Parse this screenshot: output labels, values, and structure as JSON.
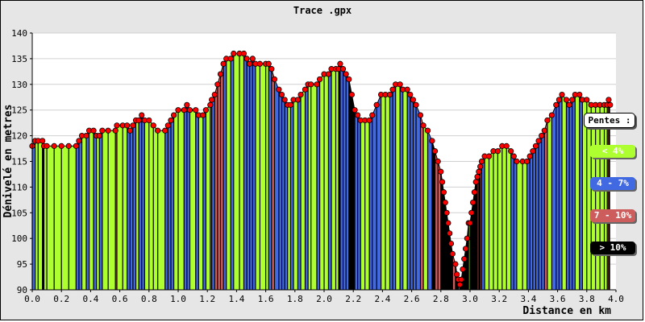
{
  "chart_data": {
    "type": "area",
    "title": "Trace .gpx",
    "xlabel": "Distance en km",
    "ylabel": "Dénivelé en metres",
    "xlim": [
      0,
      4.0
    ],
    "ylim": [
      90,
      140
    ],
    "x_ticks": [
      "0.0",
      "0.2",
      "0.4",
      "0.6",
      "0.8",
      "1.0",
      "1.2",
      "1.4",
      "1.6",
      "1.8",
      "2.0",
      "2.2",
      "2.4",
      "2.6",
      "2.8",
      "3.0",
      "3.2",
      "3.4",
      "3.6",
      "3.8",
      "4.0"
    ],
    "y_ticks": [
      "90",
      "95",
      "100",
      "105",
      "110",
      "115",
      "120",
      "125",
      "130",
      "135",
      "140"
    ],
    "grid": "horizontal",
    "legend": {
      "title": "Pentes :",
      "placement": "right",
      "items": [
        {
          "label": "< 4%",
          "color": "#adff2f",
          "text_color": "#ffffff"
        },
        {
          "label": "4 - 7%",
          "color": "#4169e1",
          "text_color": "#ffffff"
        },
        {
          "label": "7 - 10%",
          "color": "#cd5c5c",
          "text_color": "#ffffff"
        },
        {
          "label": "> 10%",
          "color": "#000000",
          "text_color": "#ffffff"
        }
      ]
    },
    "points": [
      [
        0.0,
        118
      ],
      [
        0.02,
        119
      ],
      [
        0.04,
        119
      ],
      [
        0.07,
        119
      ],
      [
        0.08,
        118
      ],
      [
        0.1,
        118
      ],
      [
        0.15,
        118
      ],
      [
        0.2,
        118
      ],
      [
        0.25,
        118
      ],
      [
        0.3,
        118
      ],
      [
        0.32,
        119
      ],
      [
        0.34,
        120
      ],
      [
        0.37,
        120
      ],
      [
        0.39,
        121
      ],
      [
        0.42,
        121
      ],
      [
        0.44,
        120
      ],
      [
        0.46,
        120
      ],
      [
        0.48,
        121
      ],
      [
        0.52,
        121
      ],
      [
        0.57,
        121
      ],
      [
        0.58,
        122
      ],
      [
        0.62,
        122
      ],
      [
        0.65,
        122
      ],
      [
        0.67,
        121
      ],
      [
        0.69,
        122
      ],
      [
        0.71,
        123
      ],
      [
        0.73,
        123
      ],
      [
        0.75,
        124
      ],
      [
        0.77,
        123
      ],
      [
        0.8,
        123
      ],
      [
        0.83,
        122
      ],
      [
        0.86,
        121
      ],
      [
        0.91,
        121
      ],
      [
        0.93,
        122
      ],
      [
        0.95,
        123
      ],
      [
        0.97,
        124
      ],
      [
        1.0,
        125
      ],
      [
        1.04,
        125
      ],
      [
        1.06,
        126
      ],
      [
        1.08,
        125
      ],
      [
        1.12,
        125
      ],
      [
        1.14,
        124
      ],
      [
        1.17,
        124
      ],
      [
        1.19,
        125
      ],
      [
        1.22,
        126
      ],
      [
        1.23,
        127
      ],
      [
        1.25,
        128
      ],
      [
        1.27,
        130
      ],
      [
        1.29,
        132
      ],
      [
        1.31,
        134
      ],
      [
        1.33,
        135
      ],
      [
        1.36,
        135
      ],
      [
        1.38,
        136
      ],
      [
        1.42,
        136
      ],
      [
        1.45,
        136
      ],
      [
        1.47,
        135
      ],
      [
        1.49,
        134
      ],
      [
        1.51,
        135
      ],
      [
        1.53,
        134
      ],
      [
        1.56,
        134
      ],
      [
        1.6,
        134
      ],
      [
        1.62,
        134
      ],
      [
        1.64,
        133
      ],
      [
        1.66,
        131
      ],
      [
        1.69,
        129
      ],
      [
        1.71,
        128
      ],
      [
        1.73,
        127
      ],
      [
        1.75,
        126
      ],
      [
        1.77,
        126
      ],
      [
        1.79,
        127
      ],
      [
        1.82,
        127
      ],
      [
        1.84,
        128
      ],
      [
        1.87,
        129
      ],
      [
        1.89,
        130
      ],
      [
        1.91,
        130
      ],
      [
        1.95,
        130
      ],
      [
        1.97,
        131
      ],
      [
        2.0,
        132
      ],
      [
        2.03,
        132
      ],
      [
        2.05,
        133
      ],
      [
        2.08,
        133
      ],
      [
        2.1,
        133
      ],
      [
        2.11,
        134
      ],
      [
        2.13,
        133
      ],
      [
        2.15,
        132
      ],
      [
        2.17,
        131
      ],
      [
        2.19,
        128
      ],
      [
        2.21,
        125
      ],
      [
        2.23,
        124
      ],
      [
        2.25,
        123
      ],
      [
        2.28,
        123
      ],
      [
        2.31,
        123
      ],
      [
        2.33,
        124
      ],
      [
        2.36,
        126
      ],
      [
        2.39,
        128
      ],
      [
        2.42,
        128
      ],
      [
        2.45,
        128
      ],
      [
        2.47,
        129
      ],
      [
        2.49,
        130
      ],
      [
        2.52,
        130
      ],
      [
        2.54,
        129
      ],
      [
        2.57,
        129
      ],
      [
        2.59,
        128
      ],
      [
        2.61,
        127
      ],
      [
        2.63,
        126
      ],
      [
        2.66,
        124
      ],
      [
        2.68,
        122
      ],
      [
        2.71,
        121
      ],
      [
        2.74,
        119
      ],
      [
        2.76,
        117
      ],
      [
        2.78,
        115
      ],
      [
        2.8,
        113
      ],
      [
        2.81,
        111
      ],
      [
        2.82,
        109
      ],
      [
        2.83,
        107
      ],
      [
        2.84,
        105
      ],
      [
        2.85,
        103
      ],
      [
        2.86,
        101
      ],
      [
        2.87,
        99
      ],
      [
        2.88,
        97
      ],
      [
        2.9,
        95
      ],
      [
        2.91,
        93
      ],
      [
        2.92,
        92
      ],
      [
        2.93,
        91
      ],
      [
        2.94,
        92
      ],
      [
        2.95,
        94
      ],
      [
        2.96,
        96
      ],
      [
        2.97,
        98
      ],
      [
        2.98,
        100
      ],
      [
        2.99,
        103
      ],
      [
        3.0,
        103
      ],
      [
        3.01,
        105
      ],
      [
        3.02,
        107
      ],
      [
        3.03,
        109
      ],
      [
        3.04,
        111
      ],
      [
        3.05,
        112
      ],
      [
        3.06,
        113
      ],
      [
        3.07,
        114
      ],
      [
        3.08,
        115
      ],
      [
        3.1,
        116
      ],
      [
        3.13,
        116
      ],
      [
        3.16,
        117
      ],
      [
        3.19,
        117
      ],
      [
        3.22,
        118
      ],
      [
        3.25,
        118
      ],
      [
        3.28,
        117
      ],
      [
        3.3,
        116
      ],
      [
        3.32,
        115
      ],
      [
        3.36,
        115
      ],
      [
        3.39,
        115
      ],
      [
        3.41,
        116
      ],
      [
        3.43,
        117
      ],
      [
        3.45,
        118
      ],
      [
        3.47,
        119
      ],
      [
        3.49,
        120
      ],
      [
        3.51,
        121
      ],
      [
        3.53,
        123
      ],
      [
        3.56,
        124
      ],
      [
        3.59,
        126
      ],
      [
        3.61,
        127
      ],
      [
        3.63,
        128
      ],
      [
        3.66,
        127
      ],
      [
        3.68,
        126
      ],
      [
        3.7,
        127
      ],
      [
        3.72,
        128
      ],
      [
        3.75,
        128
      ],
      [
        3.77,
        127
      ],
      [
        3.8,
        127
      ],
      [
        3.83,
        126
      ],
      [
        3.86,
        126
      ],
      [
        3.89,
        126
      ],
      [
        3.92,
        126
      ],
      [
        3.94,
        126
      ],
      [
        3.95,
        127
      ],
      [
        3.96,
        126
      ]
    ]
  }
}
